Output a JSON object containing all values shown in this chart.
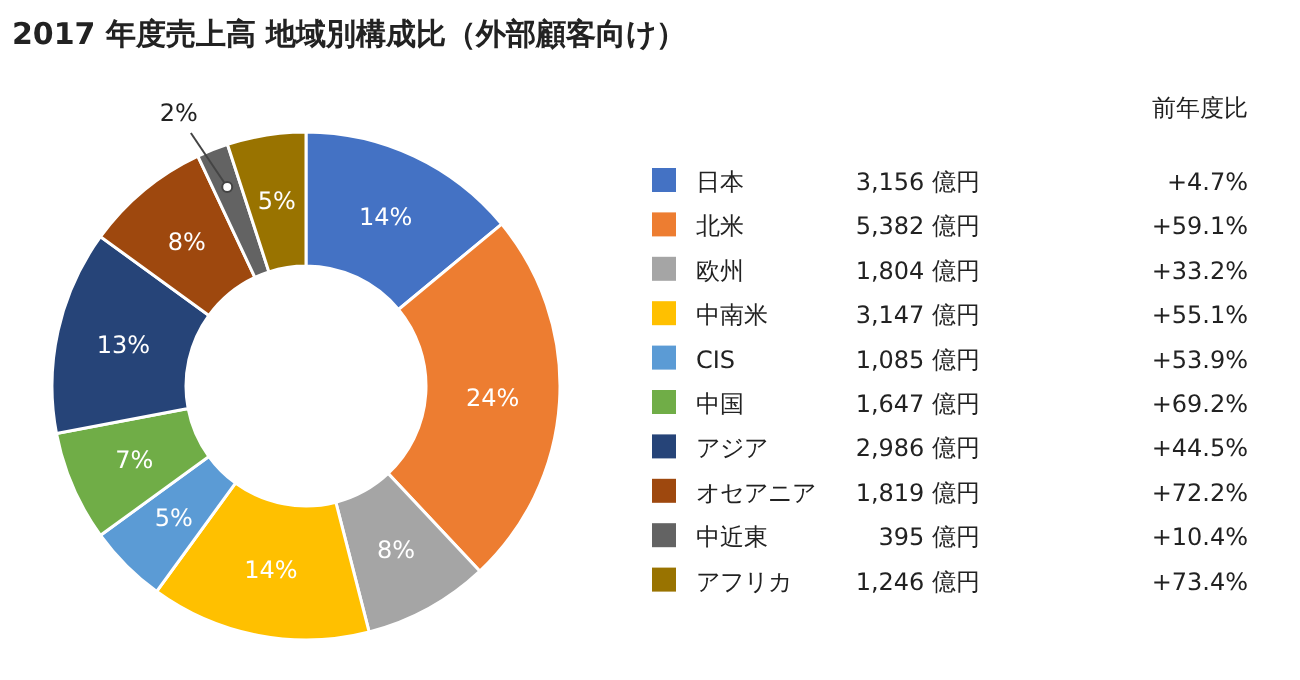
{
  "chart_data": {
    "type": "donut",
    "title": "2017 年度売上高 地域別構成比（外部顧客向け）",
    "categories": [
      "日本",
      "北米",
      "欧州",
      "中南米",
      "CIS",
      "中国",
      "アジア",
      "オセアニア",
      "中近東",
      "アフリカ"
    ],
    "values": [
      14,
      24,
      8,
      14,
      5,
      7,
      13,
      8,
      2,
      5
    ],
    "colors": [
      "#4472c4",
      "#ed7d31",
      "#a5a5a5",
      "#ffc000",
      "#5b9bd5",
      "#70ad47",
      "#264478",
      "#9e480e",
      "#636363",
      "#997300"
    ],
    "value_labels": [
      "14%",
      "24%",
      "8%",
      "14%",
      "5%",
      "7%",
      "13%",
      "8%",
      "2%",
      "5%"
    ],
    "legend": "right",
    "annotations": [
      "前年度比",
      "3,156 億円",
      "+4.7%",
      "5,382 億円",
      "+59.1%",
      "1,804 億円",
      "+33.2%",
      "3,147 億円",
      "+55.1%",
      "1,085 億円",
      "+53.9%",
      "1,647 億円",
      "+69.2%",
      "2,986 億円",
      "+44.5%",
      "1,819 億円",
      "+72.2%",
      "395 億円",
      "+10.4%",
      "1,246 億円",
      "+73.4%"
    ]
  }
}
